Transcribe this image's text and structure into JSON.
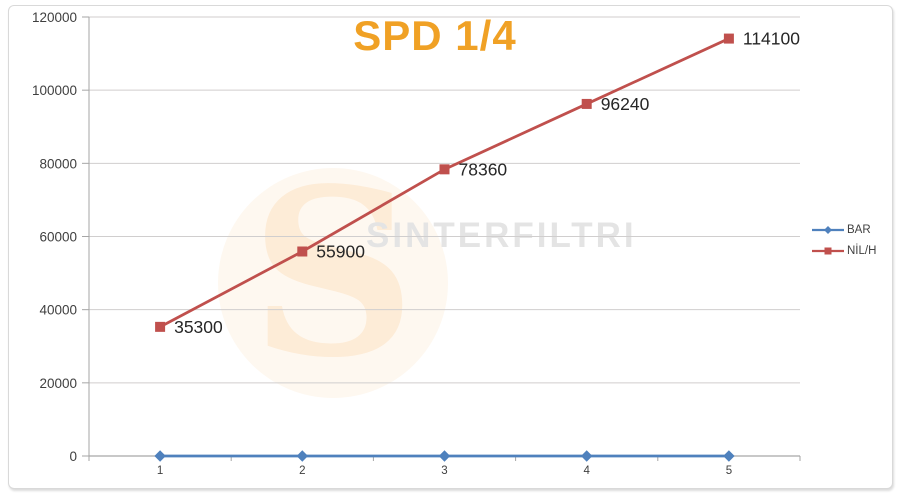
{
  "chart_data": {
    "type": "line",
    "title": "SPD 1/4",
    "title_color": "#F0A125",
    "categories": [
      "1",
      "2",
      "3",
      "4",
      "5"
    ],
    "series": [
      {
        "name": "BAR",
        "color": "#4F81BD",
        "marker": "diamond",
        "values": [
          0,
          0,
          0,
          0,
          0
        ],
        "show_labels": false
      },
      {
        "name": "NİL/H",
        "color": "#C0504D",
        "marker": "square",
        "values": [
          35300,
          55900,
          78360,
          96240,
          114100
        ],
        "show_labels": true,
        "data_labels": [
          "35300",
          "55900",
          "78360",
          "96240",
          "114100"
        ]
      }
    ],
    "ylim": [
      0,
      120000
    ],
    "ytick_step": 20000,
    "ytick_labels": [
      "0",
      "20000",
      "40000",
      "60000",
      "80000",
      "100000",
      "120000"
    ],
    "grid": "horizontal",
    "gridline_color": "#D0CECE",
    "axis_color": "#A6A6A6",
    "axis_label_color": "#3F3F3F",
    "data_label_color": "#262626",
    "legend_position": "right",
    "watermark": {
      "text": "SINTERFILTRI",
      "logo_letter": "S"
    }
  }
}
